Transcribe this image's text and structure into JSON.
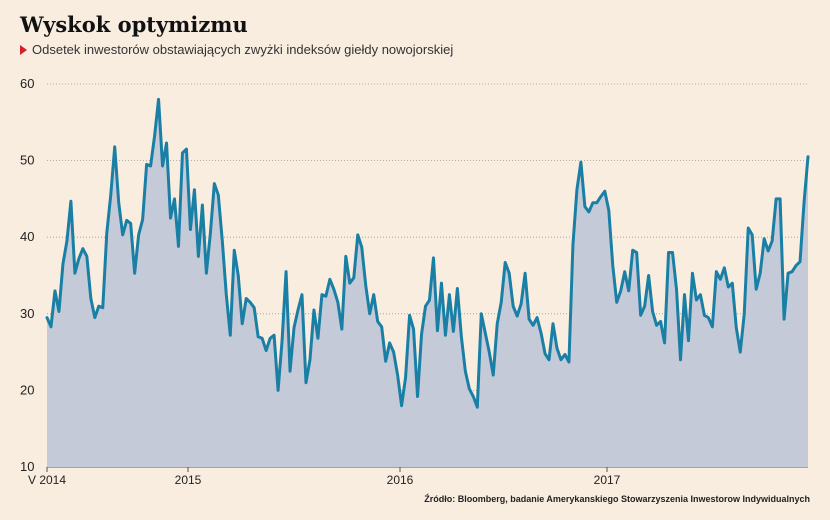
{
  "title": "Wyskok optymizmu",
  "subtitle": "Odsetek inwestorów obstawiających zwyżki indeksów giełdy nowojorskiej",
  "source": "Źródło: Bloomberg, badanie Amerykanskiego Stowarzyszenia Inwestorow Indywidualnych",
  "colors": {
    "background": "#f9ede0",
    "line": "#1a7fa5",
    "area": "#c5cad8",
    "grid": "#9a9a9a",
    "marker": "#d61f26"
  },
  "chart_data": {
    "type": "area",
    "ylim": [
      10,
      60
    ],
    "y_ticks": [
      60,
      50,
      40,
      30,
      20,
      10
    ],
    "x_tick_labels": [
      "V 2014",
      "2015",
      "2016",
      "2017"
    ],
    "grid": "horizontal-dotted",
    "series": [
      {
        "values": [
          29.5,
          28.3,
          33.0,
          30.3,
          36.5,
          39.5,
          44.7,
          35.3,
          37.2,
          38.5,
          37.5,
          32.0,
          29.5,
          31.0,
          30.8,
          40.5,
          45.5,
          51.8,
          44.5,
          40.3,
          42.2,
          41.8,
          35.3,
          40.3,
          42.3,
          49.5,
          49.3,
          53.2,
          58.0,
          49.3,
          52.3,
          42.5,
          45.0,
          38.8,
          51.0,
          51.5,
          41.0,
          46.2,
          37.5,
          44.2,
          35.3,
          40.5,
          47.0,
          45.5,
          39.5,
          32.5,
          27.2,
          38.3,
          35.0,
          28.7,
          32.0,
          31.5,
          30.8,
          27.0,
          26.8,
          25.2,
          26.8,
          27.2,
          20.0,
          26.5,
          35.5,
          22.5,
          28.2,
          30.5,
          32.5,
          21.0,
          24.0,
          30.5,
          26.8,
          32.5,
          32.3,
          34.5,
          33.2,
          31.5,
          28.0,
          37.5,
          34.0,
          34.7,
          40.3,
          38.7,
          33.7,
          30.0,
          32.5,
          29.0,
          28.3,
          23.8,
          26.2,
          25.0,
          22.0,
          18.0,
          21.7,
          29.8,
          28.0,
          19.2,
          27.3,
          31.0,
          31.8,
          37.3,
          27.8,
          34.0,
          27.2,
          32.5,
          27.7,
          33.3,
          27.0,
          22.5,
          20.2,
          19.2,
          17.8,
          30.0,
          27.5,
          25.0,
          22.0,
          28.7,
          31.5,
          36.7,
          35.3,
          31.0,
          29.7,
          31.3,
          35.3,
          29.3,
          28.5,
          29.5,
          27.5,
          24.8,
          24.0,
          28.7,
          25.5,
          24.0,
          24.7,
          23.7,
          39.0,
          46.2,
          49.8,
          44.0,
          43.3,
          44.5,
          44.5,
          45.3,
          46.0,
          43.5,
          36.3,
          31.5,
          33.0,
          35.5,
          33.0,
          38.3,
          38.0,
          29.8,
          31.0,
          35.0,
          30.3,
          28.5,
          29.0,
          26.2,
          38.0,
          38.0,
          33.2,
          24.0,
          32.5,
          26.5,
          35.3,
          31.8,
          32.5,
          29.8,
          29.5,
          28.3,
          35.5,
          34.5,
          36.0,
          33.5,
          34.0,
          28.2,
          25.0,
          30.0,
          41.2,
          40.3,
          33.2,
          35.3,
          39.8,
          38.2,
          39.5,
          45.0,
          45.0,
          29.3,
          35.3,
          35.5,
          36.3,
          36.8,
          44.5,
          50.5
        ]
      }
    ]
  }
}
